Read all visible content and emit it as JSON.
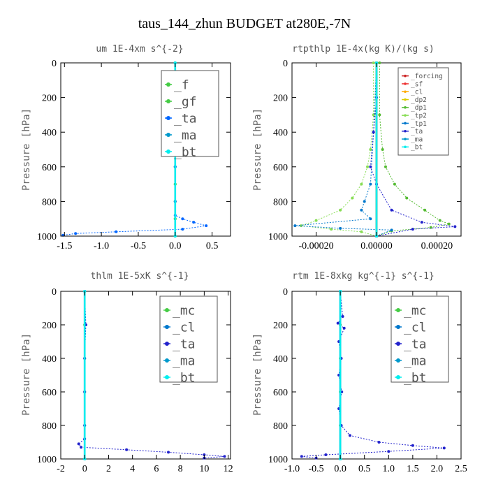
{
  "figure": {
    "title": "taus_144_zhun  BUDGET at280E,-7N"
  },
  "chart_data": [
    {
      "type": "line",
      "title": "um  1E-4xm s^{-2}",
      "ylabel": "Pressure [hPa]",
      "xlim": [
        -1.55,
        0.75
      ],
      "ylim": [
        1000,
        0
      ],
      "xticks": [
        -1.5,
        -1.0,
        -0.5,
        0.0,
        0.5
      ],
      "xtick_labels": [
        "-1.5",
        "-1.0",
        "-0.5",
        "0.0",
        "0.5"
      ],
      "yticks": [
        0,
        200,
        400,
        600,
        800,
        1000
      ],
      "ytick_labels": [
        "0",
        "200",
        "400",
        "600",
        "800",
        "1000"
      ],
      "legend_position": "top-right",
      "series": [
        {
          "name": "_f",
          "color": "#44cc44",
          "points": [
            [
              0,
              0
            ],
            [
              0,
              100
            ],
            [
              0,
              200
            ],
            [
              0,
              300
            ],
            [
              0,
              400
            ],
            [
              0,
              500
            ],
            [
              0,
              600
            ],
            [
              0,
              700
            ],
            [
              0,
              800
            ],
            [
              0,
              900
            ],
            [
              0,
              1000
            ]
          ]
        },
        {
          "name": "_gf",
          "color": "#44cc44",
          "points": [
            [
              0,
              0
            ],
            [
              0,
              100
            ],
            [
              0,
              200
            ],
            [
              0,
              300
            ],
            [
              0,
              400
            ],
            [
              0,
              500
            ],
            [
              0,
              600
            ],
            [
              0,
              700
            ],
            [
              0,
              800
            ],
            [
              0,
              900
            ],
            [
              0,
              1000
            ]
          ]
        },
        {
          "name": "_ta",
          "color": "#0066ff",
          "points": [
            [
              0,
              0
            ],
            [
              0,
              200
            ],
            [
              0,
              400
            ],
            [
              0,
              600
            ],
            [
              0,
              800
            ],
            [
              0,
              880
            ],
            [
              0.1,
              900
            ],
            [
              0.25,
              920
            ],
            [
              0.42,
              940
            ],
            [
              0.1,
              960
            ],
            [
              -0.8,
              975
            ],
            [
              -1.35,
              985
            ],
            [
              -1.52,
              995
            ]
          ]
        },
        {
          "name": "_ma",
          "color": "#0099cc",
          "points": [
            [
              0,
              0
            ],
            [
              0,
              1000
            ]
          ]
        },
        {
          "name": "_bt",
          "color": "#00eeee",
          "points": [
            [
              0,
              0
            ],
            [
              0,
              1000
            ]
          ]
        }
      ]
    },
    {
      "type": "line",
      "title": "rtpthlp  1E-4x(kg K)/(kg s)",
      "ylabel": "Pressure [hPa]",
      "xlim": [
        -0.00028,
        0.00028
      ],
      "ylim": [
        1000,
        0
      ],
      "xticks": [
        -0.0002,
        0.0,
        0.0002
      ],
      "xtick_labels": [
        "-0.00020",
        "0.00000",
        "0.00020"
      ],
      "yticks": [
        0,
        200,
        400,
        600,
        800,
        1000
      ],
      "ytick_labels": [
        "0",
        "200",
        "400",
        "600",
        "800",
        "1000"
      ],
      "legend_position": "top-right",
      "series": [
        {
          "name": "_forcing",
          "color": "#cc2222",
          "points": [
            [
              0,
              0
            ],
            [
              0,
              1000
            ]
          ]
        },
        {
          "name": "_sf",
          "color": "#ee3333",
          "points": [
            [
              0,
              0
            ],
            [
              0,
              1000
            ]
          ]
        },
        {
          "name": "_cl",
          "color": "#ffaa00",
          "points": [
            [
              0,
              0
            ],
            [
              0,
              1000
            ]
          ]
        },
        {
          "name": "_dp2",
          "color": "#ddcc00",
          "points": [
            [
              0,
              0
            ],
            [
              0,
              1000
            ]
          ]
        },
        {
          "name": "_dp1",
          "color": "#55bb33",
          "points": [
            [
              1e-05,
              0
            ],
            [
              1e-05,
              300
            ],
            [
              2e-05,
              500
            ],
            [
              3e-05,
              600
            ],
            [
              6e-05,
              700
            ],
            [
              0.0001,
              780
            ],
            [
              0.00016,
              850
            ],
            [
              0.00021,
              910
            ],
            [
              0.00024,
              930
            ],
            [
              0.00018,
              950
            ],
            [
              5e-05,
              970
            ],
            [
              0.0,
              1000
            ]
          ]
        },
        {
          "name": "_tp2",
          "color": "#88dd55",
          "points": [
            [
              -1e-05,
              0
            ],
            [
              -1e-05,
              300
            ],
            [
              -2e-05,
              500
            ],
            [
              -3e-05,
              600
            ],
            [
              -5e-05,
              700
            ],
            [
              -8e-05,
              780
            ],
            [
              -0.00012,
              850
            ],
            [
              -0.0002,
              910
            ],
            [
              -0.00025,
              940
            ],
            [
              -0.00015,
              960
            ],
            [
              -5e-05,
              975
            ],
            [
              0.0,
              1000
            ]
          ]
        },
        {
          "name": "_tp1",
          "color": "#0077cc",
          "points": [
            [
              0,
              0
            ],
            [
              -1e-05,
              400
            ],
            [
              -2e-05,
              700
            ],
            [
              -4e-05,
              800
            ],
            [
              -5e-05,
              850
            ],
            [
              -2e-05,
              900
            ],
            [
              -0.00027,
              940
            ],
            [
              -0.00012,
              955
            ],
            [
              5e-05,
              965
            ],
            [
              0.0,
              1000
            ]
          ]
        },
        {
          "name": "_ta",
          "color": "#2222cc",
          "points": [
            [
              0,
              0
            ],
            [
              0,
              200
            ],
            [
              -1e-05,
              400
            ],
            [
              -2e-05,
              600
            ],
            [
              0.0,
              700
            ],
            [
              5e-05,
              850
            ],
            [
              0.00015,
              920
            ],
            [
              0.00026,
              945
            ],
            [
              0.00012,
              960
            ],
            [
              0.0,
              1000
            ]
          ]
        },
        {
          "name": "_ma",
          "color": "#0099cc",
          "points": [
            [
              0,
              0
            ],
            [
              0,
              1000
            ]
          ]
        },
        {
          "name": "_bt",
          "color": "#00eeee",
          "points": [
            [
              0,
              0
            ],
            [
              0,
              1000
            ]
          ]
        }
      ]
    },
    {
      "type": "line",
      "title": "thlm  1E-5xK s^{-1}",
      "ylabel": "Pressure [hPa]",
      "xlim": [
        -2,
        12.2
      ],
      "ylim": [
        1000,
        0
      ],
      "xticks": [
        -2,
        0,
        2,
        4,
        6,
        8,
        10,
        12
      ],
      "xtick_labels": [
        "-2",
        "0",
        "2",
        "4",
        "6",
        "8",
        "10",
        "12"
      ],
      "yticks": [
        0,
        200,
        400,
        600,
        800,
        1000
      ],
      "ytick_labels": [
        "0",
        "200",
        "400",
        "600",
        "800",
        "1000"
      ],
      "legend_position": "top-right",
      "series": [
        {
          "name": "_mc",
          "color": "#44cc44",
          "points": [
            [
              0,
              0
            ],
            [
              0,
              200
            ],
            [
              0,
              400
            ],
            [
              0,
              600
            ],
            [
              0,
              800
            ],
            [
              0,
              1000
            ]
          ]
        },
        {
          "name": "_cl",
          "color": "#0077cc",
          "points": [
            [
              0,
              0
            ],
            [
              0,
              1000
            ]
          ]
        },
        {
          "name": "_ta",
          "color": "#2222cc",
          "points": [
            [
              0,
              0
            ],
            [
              0.1,
              200
            ],
            [
              0,
              400
            ],
            [
              0,
              600
            ],
            [
              0,
              800
            ],
            [
              0,
              880
            ],
            [
              -0.5,
              910
            ],
            [
              -0.3,
              930
            ],
            [
              3.5,
              945
            ],
            [
              7,
              960
            ],
            [
              10,
              975
            ],
            [
              11.7,
              985
            ],
            [
              10,
              995
            ]
          ]
        },
        {
          "name": "_ma",
          "color": "#0099cc",
          "points": [
            [
              0,
              0
            ],
            [
              0,
              1000
            ]
          ]
        },
        {
          "name": "_bt",
          "color": "#00eeee",
          "points": [
            [
              0,
              0
            ],
            [
              0,
              1000
            ]
          ]
        }
      ]
    },
    {
      "type": "line",
      "title": "rtm  1E-8xkg kg^{-1} s^{-1}",
      "ylabel": "Pressure [hPa]",
      "xlim": [
        -1.0,
        2.5
      ],
      "ylim": [
        1000,
        0
      ],
      "xticks": [
        -1.0,
        -0.5,
        0.0,
        0.5,
        1.0,
        1.5,
        2.0,
        2.5
      ],
      "xtick_labels": [
        "-1.0",
        "-0.5",
        "0.0",
        "0.5",
        "1.0",
        "1.5",
        "2.0",
        "2.5"
      ],
      "yticks": [
        0,
        200,
        400,
        600,
        800,
        1000
      ],
      "ytick_labels": [
        "0",
        "200",
        "400",
        "600",
        "800",
        "1000"
      ],
      "legend_position": "top-right",
      "series": [
        {
          "name": "_mc",
          "color": "#44cc44",
          "points": [
            [
              0,
              0
            ],
            [
              0,
              200
            ],
            [
              0,
              400
            ],
            [
              0,
              600
            ],
            [
              0,
              800
            ],
            [
              0,
              1000
            ]
          ]
        },
        {
          "name": "_cl",
          "color": "#0077cc",
          "points": [
            [
              0,
              0
            ],
            [
              0,
              1000
            ]
          ]
        },
        {
          "name": "_ta",
          "color": "#2222cc",
          "points": [
            [
              0,
              0
            ],
            [
              0.05,
              150
            ],
            [
              -0.05,
              190
            ],
            [
              0.08,
              220
            ],
            [
              -0.03,
              300
            ],
            [
              0.02,
              400
            ],
            [
              -0.03,
              500
            ],
            [
              0.03,
              600
            ],
            [
              -0.03,
              700
            ],
            [
              0.02,
              800
            ],
            [
              0.2,
              860
            ],
            [
              0.8,
              900
            ],
            [
              1.5,
              920
            ],
            [
              2.15,
              935
            ],
            [
              1.0,
              955
            ],
            [
              -0.3,
              975
            ],
            [
              -0.8,
              985
            ],
            [
              -0.5,
              995
            ]
          ]
        },
        {
          "name": "_ma",
          "color": "#0099cc",
          "points": [
            [
              0,
              0
            ],
            [
              0,
              1000
            ]
          ]
        },
        {
          "name": "_bt",
          "color": "#00eeee",
          "points": [
            [
              0,
              0
            ],
            [
              0,
              1000
            ]
          ]
        }
      ]
    }
  ]
}
